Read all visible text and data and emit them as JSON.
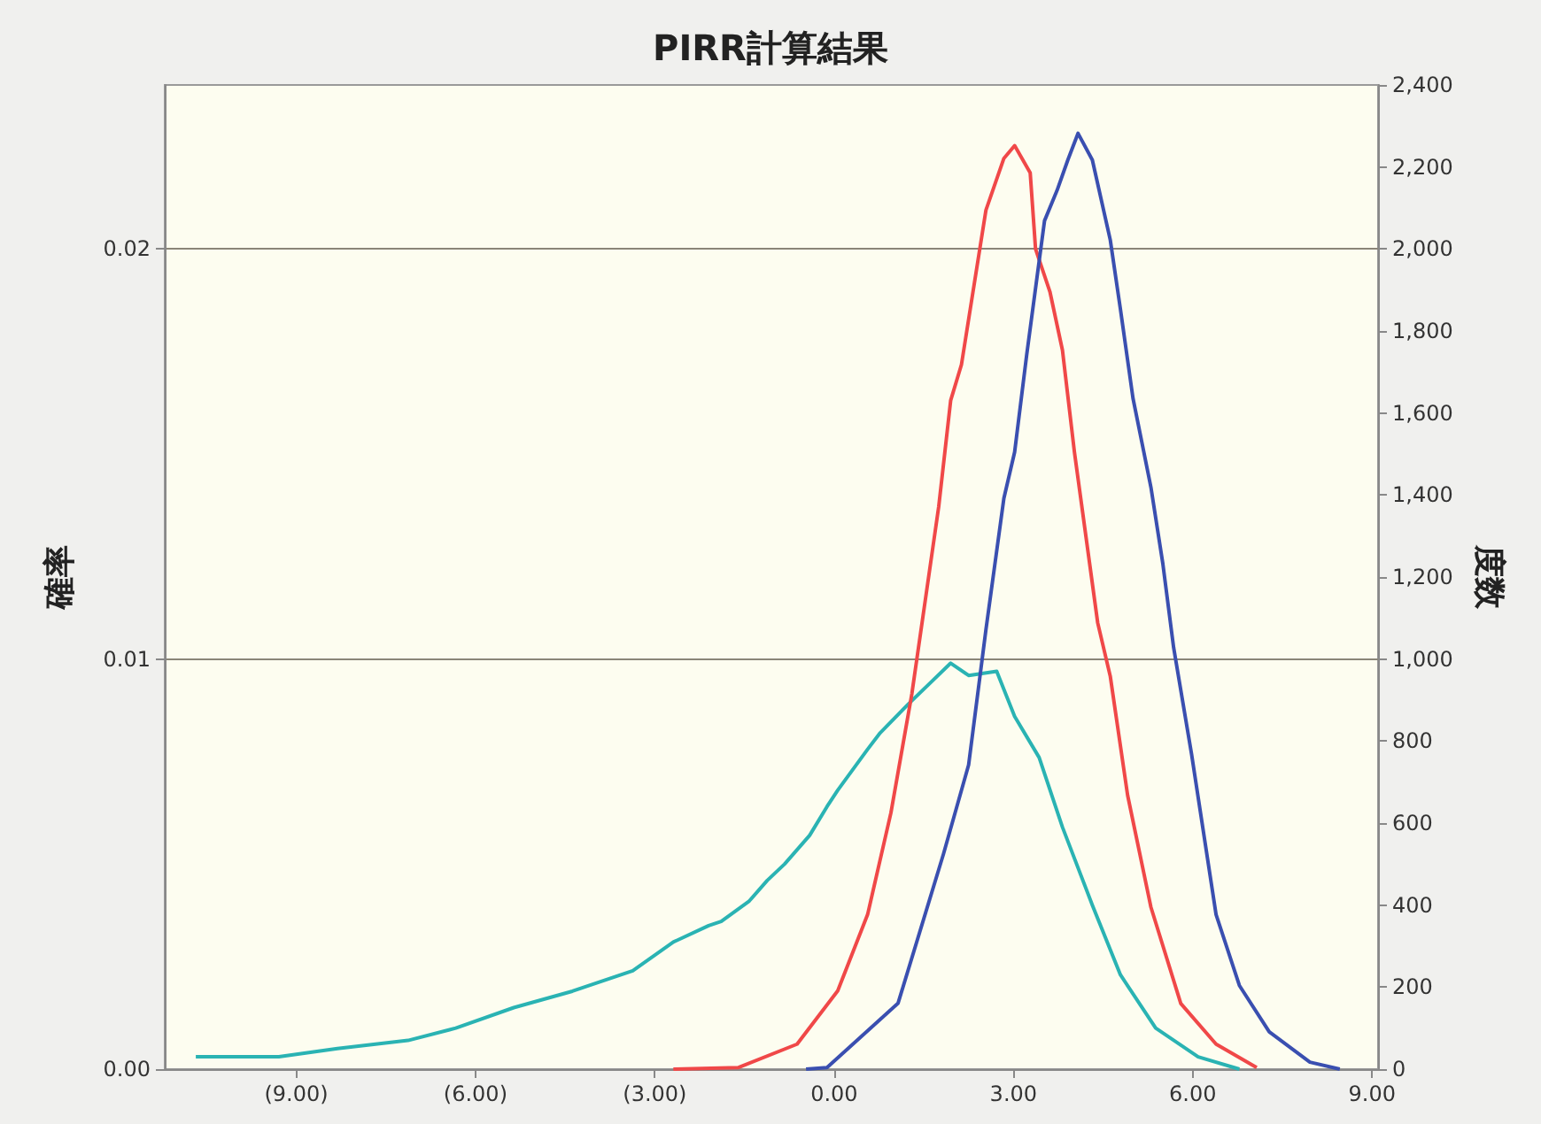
{
  "chart_data": {
    "type": "line",
    "title": "PIRR計算結果",
    "ylabel": "確率",
    "y2label": "度数",
    "xlim": [
      -11.2,
      9.1
    ],
    "xticks": [
      {
        "value": -9,
        "label": "(9.00)"
      },
      {
        "value": -6,
        "label": "(6.00)"
      },
      {
        "value": -3,
        "label": "(3.00)"
      },
      {
        "value": 0,
        "label": "0.00"
      },
      {
        "value": 3,
        "label": "3.00"
      },
      {
        "value": 6,
        "label": "6.00"
      },
      {
        "value": 9,
        "label": "9.00"
      }
    ],
    "ylim": [
      0,
      0.024
    ],
    "yticks": [
      {
        "value": 0,
        "label": "0.00"
      },
      {
        "value": 0.01,
        "label": "0.01"
      },
      {
        "value": 0.02,
        "label": "0.02"
      }
    ],
    "y2lim": [
      0,
      2400
    ],
    "y2ticks": [
      0,
      200,
      400,
      600,
      800,
      {
        "value": 1000,
        "label": "1,000"
      },
      {
        "value": 1200,
        "label": "1,200"
      },
      {
        "value": 1400,
        "label": "1,400"
      },
      {
        "value": 1600,
        "label": "1,600"
      },
      {
        "value": 1800,
        "label": "1,800"
      },
      {
        "value": 2000,
        "label": "2,000"
      },
      {
        "value": 2200,
        "label": "2,200"
      },
      {
        "value": 2400,
        "label": "2,400"
      }
    ],
    "grid": "y",
    "series": [
      {
        "color": "#2ab3b3",
        "x": [
          -10.68,
          -9.29,
          -8.31,
          -7.13,
          -6.33,
          -5.36,
          -4.38,
          -3.37,
          -2.69,
          -2.1,
          -1.89,
          -1.42,
          -1.12,
          -0.83,
          -0.41,
          -0.12,
          0.06,
          0.56,
          0.77,
          1.24,
          1.95,
          2.25,
          2.72,
          3.02,
          3.43,
          3.82,
          4.32,
          4.79,
          5.38,
          6.09,
          6.78
        ],
        "values": [
          0.0003,
          0.0003,
          0.0005,
          0.0007,
          0.001,
          0.0015,
          0.0019,
          0.0024,
          0.0031,
          0.0035,
          0.0036,
          0.0041,
          0.0046,
          0.005,
          0.0057,
          0.0064,
          0.0068,
          0.0078,
          0.0082,
          0.0089,
          0.0099,
          0.0096,
          0.0097,
          0.0086,
          0.0076,
          0.0059,
          0.004,
          0.0023,
          0.001,
          0.0003,
          0.0
        ]
      },
      {
        "color": "#f04848",
        "axis": "y2",
        "x": [
          -2.69,
          -1.6,
          -0.62,
          0.06,
          0.56,
          0.95,
          1.3,
          1.75,
          1.95,
          2.13,
          2.54,
          2.84,
          3.02,
          3.28,
          3.37,
          3.61,
          3.82,
          4.02,
          4.41,
          4.62,
          4.91,
          5.3,
          5.8,
          6.39,
          7.07
        ],
        "values": [
          0,
          4,
          61,
          191,
          377,
          625,
          915,
          1372,
          1631,
          1718,
          2095,
          2221,
          2252,
          2186,
          2000,
          1896,
          1753,
          1505,
          1088,
          958,
          668,
          395,
          160,
          61,
          4
        ]
      },
      {
        "color": "#3a4fb0",
        "axis": "y2",
        "x": [
          -0.47,
          -0.12,
          1.07,
          1.83,
          2.25,
          2.54,
          2.84,
          3.02,
          3.22,
          3.52,
          3.73,
          3.91,
          4.08,
          4.32,
          4.62,
          4.79,
          5.0,
          5.3,
          5.5,
          5.68,
          5.98,
          6.39,
          6.78,
          7.28,
          7.96,
          8.46
        ],
        "values": [
          0,
          4,
          161,
          525,
          742,
          1072,
          1392,
          1505,
          1740,
          2069,
          2143,
          2217,
          2282,
          2217,
          2022,
          1853,
          1636,
          1419,
          1232,
          1028,
          768,
          377,
          204,
          91,
          17,
          0
        ]
      }
    ]
  }
}
